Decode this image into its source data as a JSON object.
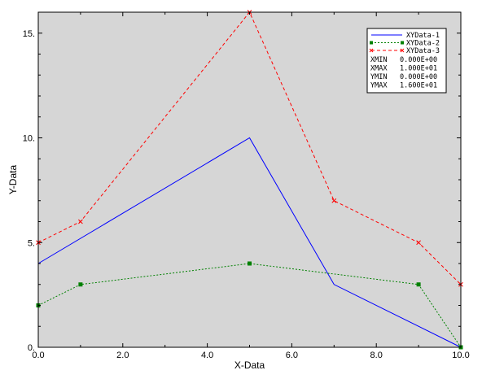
{
  "chart_data": {
    "type": "line",
    "xlabel": "X-Data",
    "ylabel": "Y-Data",
    "xlim": [
      0,
      10
    ],
    "ylim": [
      0,
      16
    ],
    "x_ticks": [
      0,
      2,
      4,
      6,
      8,
      10
    ],
    "x_tick_labels": [
      "0.0",
      "2.0",
      "4.0",
      "6.0",
      "8.0",
      "10.0"
    ],
    "y_ticks": [
      0,
      5,
      10,
      15
    ],
    "y_tick_labels": [
      "0.",
      "5.",
      "10.",
      "15."
    ],
    "grid": false,
    "legend_position": "top-right",
    "background_color": "#d6d6d6",
    "series": [
      {
        "name": "XYData-1",
        "color": "#0000ff",
        "line_style": "solid",
        "marker": "none",
        "x": [
          0,
          5,
          7,
          10
        ],
        "y": [
          4,
          10,
          3,
          0
        ]
      },
      {
        "name": "XYData-2",
        "color": "#008000",
        "line_style": "dotted",
        "marker": "square",
        "x": [
          0,
          1,
          5,
          9,
          10
        ],
        "y": [
          2,
          3,
          4,
          3,
          0
        ]
      },
      {
        "name": "XYData-3",
        "color": "#ff0000",
        "line_style": "dashed",
        "marker": "x",
        "x": [
          0,
          1,
          5,
          7,
          9,
          10
        ],
        "y": [
          5,
          6,
          16,
          7,
          5,
          3
        ]
      }
    ],
    "legend_stats": [
      {
        "label": "XMIN",
        "value": "0.000E+00"
      },
      {
        "label": "XMAX",
        "value": "1.000E+01"
      },
      {
        "label": "YMIN",
        "value": "0.000E+00"
      },
      {
        "label": "YMAX",
        "value": "1.600E+01"
      }
    ]
  }
}
